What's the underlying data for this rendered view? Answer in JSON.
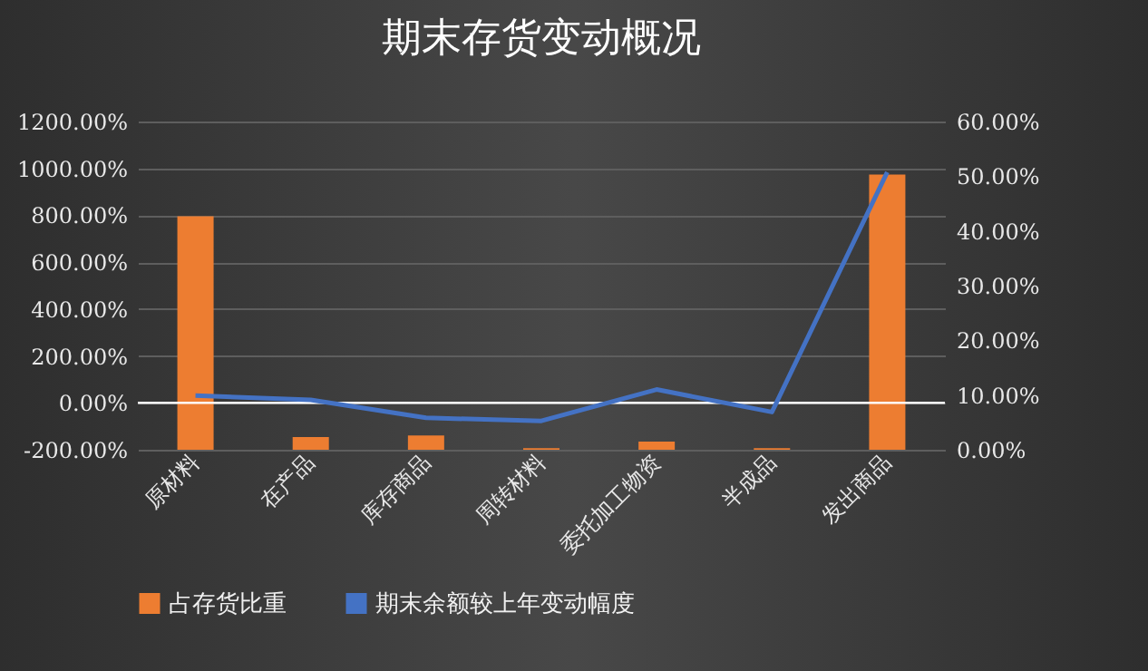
{
  "chart_data": {
    "type": "bar",
    "title": "期末存货变动概况",
    "categories": [
      "原材料",
      "在产品",
      "库存商品",
      "周转材料",
      "委托加工物资",
      "半成品",
      "发出商品"
    ],
    "series": [
      {
        "name": "占存货比重",
        "axis": "y2",
        "color": "#ed7d31",
        "values": [
          42.7,
          2.3,
          2.6,
          0.3,
          1.5,
          0.3,
          50.3
        ]
      },
      {
        "name": "期末余额较上年变动幅度",
        "type": "line",
        "axis": "y",
        "color": "#4472c4",
        "values": [
          31,
          13,
          -64,
          -77,
          57,
          -39,
          984
        ]
      }
    ],
    "ylim": [
      -200,
      1200
    ],
    "yticks": [
      {
        "value": -200,
        "label": "-200.00%"
      },
      {
        "value": 0,
        "label": "0.00%"
      },
      {
        "value": 200,
        "label": "200.00%"
      },
      {
        "value": 400,
        "label": "400.00%"
      },
      {
        "value": 600,
        "label": "600.00%"
      },
      {
        "value": 800,
        "label": "800.00%"
      },
      {
        "value": 1000,
        "label": "1000.00%"
      },
      {
        "value": 1200,
        "label": "1200.00%"
      }
    ],
    "y2lim": [
      0,
      60
    ],
    "y2ticks": [
      {
        "value": 0,
        "label": "0.00%"
      },
      {
        "value": 10,
        "label": "10.00%"
      },
      {
        "value": 20,
        "label": "20.00%"
      },
      {
        "value": 30,
        "label": "30.00%"
      },
      {
        "value": 40,
        "label": "40.00%"
      },
      {
        "value": 50,
        "label": "50.00%"
      },
      {
        "value": 60,
        "label": "60.00%"
      }
    ],
    "ref_lines": [
      {
        "axis": "y",
        "value": 0,
        "color": "#ffffff"
      }
    ],
    "grid": "y",
    "legend": "bottom",
    "line_style": "solid",
    "marker": "none"
  }
}
